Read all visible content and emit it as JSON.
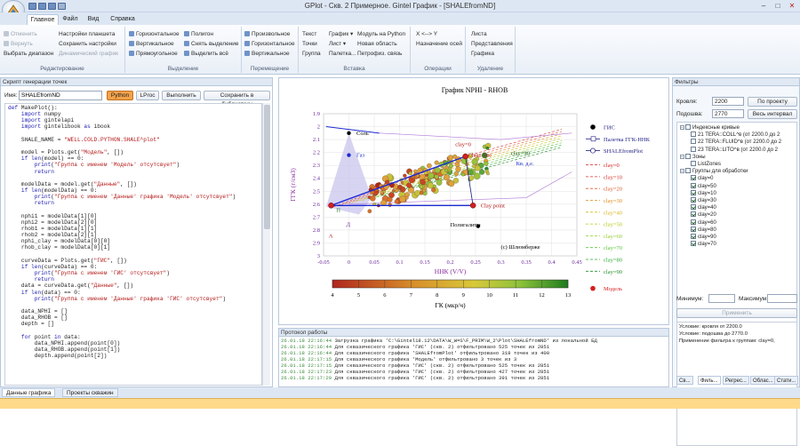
{
  "window": {
    "title": "GPlot - Скв. 2 Примерное. Gintel График - [SHALEfromND]"
  },
  "tabs": [
    "Главное",
    "Файл",
    "Вид",
    "Справка"
  ],
  "ribbon": {
    "groups": [
      {
        "title": "Редактирование",
        "items": [
          "Отменить",
          "Вернуть",
          "Выбрать диапазон",
          "Настройки планшета",
          "Сохранить настройки",
          "Динамический график"
        ]
      },
      {
        "title": "Выделение",
        "items": [
          "Горизонтальное",
          "Вертикальное",
          "Прямоугольное",
          "Полигон",
          "Снять выделение",
          "Выделить всё"
        ]
      },
      {
        "title": "Перемещение",
        "items": [
          "Произвольное",
          "Горизонтальное",
          "Вертикальное"
        ]
      },
      {
        "title": "Вставка",
        "items": [
          "Текст",
          "Точки",
          "Группа",
          "График",
          "Лист",
          "Палетка...",
          "Модуль на Python",
          "Новая область",
          "Петрофиз. связь"
        ]
      },
      {
        "title": "Операции",
        "items": [
          "X <--> Y",
          "Назначение осей"
        ]
      },
      {
        "title": "Удаление",
        "items": [
          "Листа",
          "Представления",
          "Графика"
        ]
      }
    ]
  },
  "script_panel": {
    "header": "Скрипт генерации точек",
    "name_label": "Имя:",
    "name_value": "SHALEfromND",
    "btn_python": "Python",
    "btn_lproc": "LProc",
    "btn_run": "Выполнить",
    "btn_save": "Сохранить в библиотеку",
    "code": [
      "def MakePlot():",
      "    import numpy",
      "    import gintelapi",
      "    import gintelibook as ibook",
      "",
      "    SHALE_NAME = \"WELL.COLD.PYTHON.SHALE^plot\"",
      "",
      "    model = Plots.get(\"Модель\", [])",
      "    if len(model) == 0:",
      "        print(\"Группа с именем 'Модель' отсутсвует\")",
      "        return",
      "",
      "    modelData = model.get(\"Данные\", [])",
      "    if len(modelData) == 0:",
      "        print(\"Группа с именем 'Данные' графика 'Модель' отсутсвует\")",
      "        return",
      "",
      "    nphi1 = modelData[1][0]",
      "    nphi2 = modelData[2][0]",
      "    rhob1 = modelData[1][1]",
      "    rhob2 = modelData[2][1]",
      "    nphi_clay = modelData[0][0]",
      "    rhob_clay = modelData[0][1]",
      "",
      "    curveData = Plots.get(\"ГИС\", [])",
      "    if len(curveData) == 0:",
      "        print(\"Группа с именем 'ГИС' отсутсвует\")",
      "        return",
      "    data = curveData.get(\"Данные\", [])",
      "    if len(data) == 0:",
      "        print(\"Группа с именем 'Данные' графика 'ГИС' отсутсвует\")",
      "",
      "    data_NPHI = []",
      "    data_RHOB = []",
      "    depth = []",
      "",
      "    for point in data:",
      "        data_NPHI.append(point[0])",
      "        data_RHOB.append(point[1])",
      "        depth.append(point[2])"
    ]
  },
  "bottom_tabs": [
    "Данные графика",
    "Проекты скважин"
  ],
  "chart": {
    "title": "График  NPHI - RHOB",
    "xlabel": "ННК (V/V)",
    "ylabel": "ГГК (г/см3)",
    "colorbar_label": "ГК (мкр/ч)",
    "annotations": [
      "Соль",
      "Газ",
      "Clean line",
      "clay=0",
      "Кв. д.е.",
      "clay=90",
      "Clay point",
      "Полигалиты",
      "(c) Шлюмберже",
      "А",
      "Д",
      "П"
    ],
    "legend": [
      "ГИС",
      "Палетка ГГК-ННК",
      "SHALEfromPlot",
      "clay=0",
      "clay=10",
      "clay=20",
      "clay=30",
      "clay=40",
      "clay=50",
      "clay=60",
      "clay=70",
      "clay=80",
      "clay=90",
      "Модель"
    ],
    "legend_colors": [
      "#000000",
      "#1a1a80",
      "#1a1a80",
      "#d42020",
      "#d8302a",
      "#e05a2a",
      "#e08a1a",
      "#d6b61a",
      "#b8c81a",
      "#8ecc2a",
      "#5ac23a",
      "#2ea832",
      "#208a28",
      "#d42020"
    ]
  },
  "chart_data": {
    "type": "scatter",
    "title": "График  NPHI - RHOB",
    "xlabel": "ННК (V/V)",
    "ylabel": "ГГК (г/см3)",
    "xlim": [
      -0.05,
      0.45
    ],
    "ylim": [
      3.0,
      1.9
    ],
    "xticks": [
      "-0.05",
      "0",
      "0.05",
      "0.1",
      "0.15",
      "0.2",
      "0.25",
      "0.3",
      "0.35",
      "0.4",
      "0.45"
    ],
    "yticks": [
      "1.9",
      "2",
      "2.1",
      "2.2",
      "2.3",
      "2.4",
      "2.5",
      "2.6",
      "2.7",
      "2.8",
      "2.9",
      "3"
    ],
    "colorbar": {
      "label": "ГК (мкр/ч)",
      "ticks": [
        "4",
        "5",
        "6",
        "7",
        "8",
        "9",
        "10",
        "11",
        "12",
        "13"
      ],
      "range": [
        4,
        13
      ]
    },
    "model_points": [
      {
        "name": "Clean line",
        "x": 0.23,
        "y": 2.23
      },
      {
        "name": "Clay point",
        "x": 0.245,
        "y": 2.61
      },
      {
        "name": "П",
        "x": -0.035,
        "y": 2.61
      }
    ],
    "markers": [
      {
        "name": "Соль",
        "x": 0.0,
        "y": 2.05
      },
      {
        "name": "Газ",
        "x": 0.0,
        "y": 2.22
      },
      {
        "name": "Полигалиты",
        "x": 0.255,
        "y": 2.77
      },
      {
        "name": "(c) Шлюмберже",
        "x": 0.29,
        "y": 2.95
      }
    ],
    "legend_position": "right"
  },
  "log": {
    "header": "Протокол работы",
    "lines": [
      {
        "t": "26.01.18 22:16:44",
        "m": "Загрузка графика 'C:\\Gintel18.12\\DATA\\W_W=S\\F_PRIM\\W_2\\Plot\\SHALEfromND' из локальной БД"
      },
      {
        "t": "26.01.18 22:16:44",
        "m": "Для сквазического графика 'ГИС' (скв. 2) отфильтровано 525 точек из 2851"
      },
      {
        "t": "26.01.18 22:16:44",
        "m": "Для сквазического графика 'SHALEfromPlot' отфильтровано 318 точек из 400"
      },
      {
        "t": "26.01.18 22:17:15",
        "m": "Для сквазического графика 'Модель' отфильтровано 3 точек из 3"
      },
      {
        "t": "26.01.18 22:17:15",
        "m": "Для сквазического графика 'ГИС' (скв. 2) отфильтровано 525 точек из 2851"
      },
      {
        "t": "26.01.18 22:17:23",
        "m": "Для сквазического графика 'ГИС' (скв. 2) отфильтровано 427 точек из 2851"
      },
      {
        "t": "26.01.18 22:17:29",
        "m": "Для сквазического графика 'ГИС' (скв. 2) отфильтровано 391 точек из 2851"
      }
    ]
  },
  "filters": {
    "header": "Фильтры",
    "top_label": "Кровля:",
    "top_value": "2200",
    "bottom_label": "Подошва:",
    "bottom_value": "2770",
    "btn_project": "По проекту",
    "btn_all": "Весь интервал",
    "tree": [
      {
        "level": 0,
        "label": "Индексные кривые",
        "check": false,
        "exp": true
      },
      {
        "level": 1,
        "label": "21 TERA::COLL^в (от 2200.0 до 2",
        "check": false
      },
      {
        "level": 1,
        "label": "22 TERA::FLUID^в (от 2200.0 до 2",
        "check": false
      },
      {
        "level": 1,
        "label": "23 TERA::LITO^в (от 2200.0 до 2",
        "check": false
      },
      {
        "level": 0,
        "label": "Зоны",
        "check": false,
        "exp": true
      },
      {
        "level": 1,
        "label": "ListZones",
        "check": false
      },
      {
        "level": 0,
        "label": "Группы для обработки",
        "check": false,
        "exp": true
      },
      {
        "level": 1,
        "label": "clay=0",
        "check": true
      },
      {
        "level": 1,
        "label": "clay=50",
        "check": true
      },
      {
        "level": 1,
        "label": "clay=10",
        "check": true
      },
      {
        "level": 1,
        "label": "clay=30",
        "check": true
      },
      {
        "level": 1,
        "label": "clay=40",
        "check": true
      },
      {
        "level": 1,
        "label": "clay=20",
        "check": true
      },
      {
        "level": 1,
        "label": "clay=60",
        "check": true
      },
      {
        "level": 1,
        "label": "clay=80",
        "check": true
      },
      {
        "level": 1,
        "label": "clay=90",
        "check": true
      },
      {
        "level": 1,
        "label": "clay=70",
        "check": true
      }
    ],
    "min_label": "Минимум:",
    "max_label": "Максимум:",
    "btn_apply": "Применить",
    "info": [
      "Условие:  кровля от 2200.0",
      "Условие: подошва до 2770.0",
      "Применение фильтра к группам: clay=0,"
    ],
    "tabs": [
      "Св...",
      "Филь...",
      "Регрес...",
      "Облас...",
      "Стати..."
    ]
  }
}
